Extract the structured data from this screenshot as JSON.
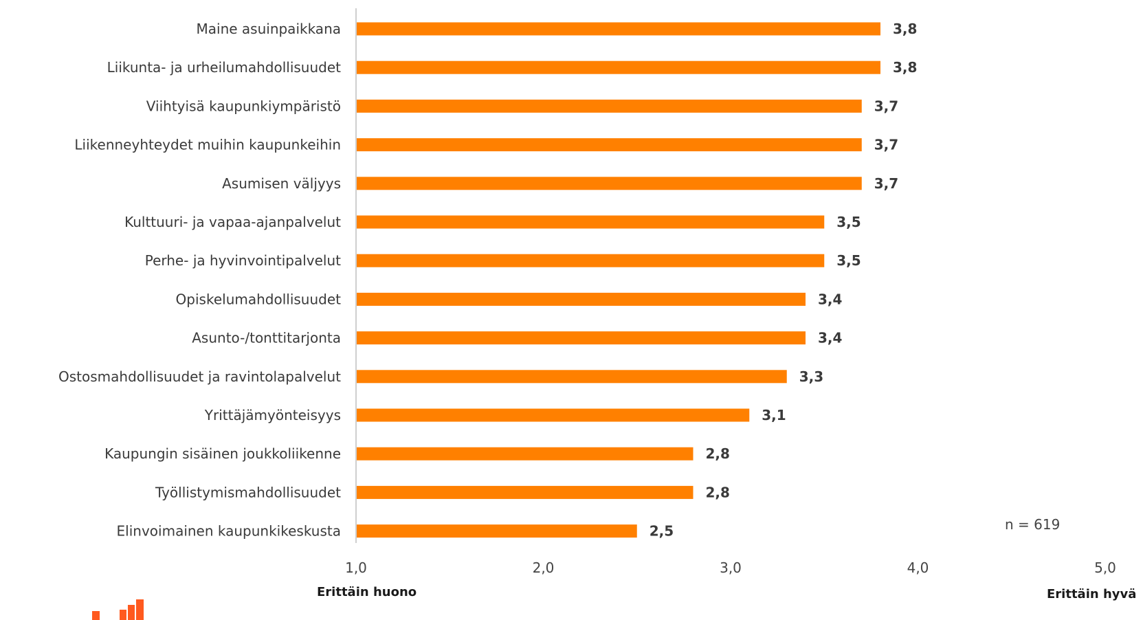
{
  "chart_data": {
    "type": "bar",
    "orientation": "horizontal",
    "categories": [
      "Maine asuinpaikkana",
      "Liikunta- ja urheilumahdollisuudet",
      "Viihtyisä kaupunkiympäristö",
      "Liikenneyhteydet muihin kaupunkeihin",
      "Asumisen väljyys",
      "Kulttuuri- ja vapaa-ajanpalvelut",
      "Perhe- ja hyvinvointipalvelut",
      "Opiskelumahdollisuudet",
      "Asunto-/tonttitarjonta",
      "Ostosmahdollisuudet ja ravintolapalvelut",
      "Yrittäjämyönteisyys",
      "Kaupungin sisäinen joukkoliikenne",
      "Työllistymismahdollisuudet",
      "Elinvoimainen kaupunkikeskusta"
    ],
    "values": [
      3.8,
      3.8,
      3.7,
      3.7,
      3.7,
      3.5,
      3.5,
      3.4,
      3.4,
      3.3,
      3.1,
      2.8,
      2.8,
      2.5
    ],
    "value_labels": [
      "3,8",
      "3,8",
      "3,7",
      "3,7",
      "3,7",
      "3,5",
      "3,5",
      "3,4",
      "3,4",
      "3,3",
      "3,1",
      "2,8",
      "2,8",
      "2,5"
    ],
    "xlim": [
      1.0,
      5.0
    ],
    "x_ticks": [
      "1,0",
      "2,0",
      "3,0",
      "4,0",
      "5,0"
    ],
    "bar_color": "#ff8000",
    "grid": false,
    "note": "n = 619",
    "scale_low_label": "Erittäin huono",
    "scale_high_label": "Erittäin hyvä"
  },
  "logo": {
    "name": "bar-logo-icon",
    "color": "#ff5a1f"
  }
}
